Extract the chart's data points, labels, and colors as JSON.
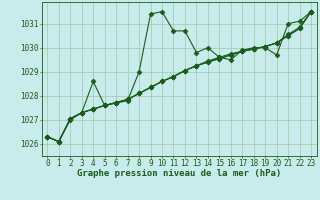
{
  "title": "Graphe pression niveau de la mer (hPa)",
  "bg_color": "#c8ecec",
  "line_color": "#1a5c1a",
  "grid_color": "#a0c8a8",
  "xlim": [
    -0.5,
    23.5
  ],
  "ylim": [
    1025.5,
    1031.9
  ],
  "yticks": [
    1026,
    1027,
    1028,
    1029,
    1030,
    1031
  ],
  "xticks": [
    0,
    1,
    2,
    3,
    4,
    5,
    6,
    7,
    8,
    9,
    10,
    11,
    12,
    13,
    14,
    15,
    16,
    17,
    18,
    19,
    20,
    21,
    22,
    23
  ],
  "series": [
    [
      1026.3,
      1026.1,
      1027.0,
      1027.3,
      1028.6,
      1027.6,
      1027.7,
      1027.8,
      1029.0,
      1031.4,
      1031.5,
      1030.7,
      1030.7,
      1029.8,
      1030.0,
      1029.6,
      1029.5,
      1029.9,
      1030.0,
      1030.0,
      1029.7,
      1031.0,
      1031.1,
      1031.5
    ],
    [
      1026.3,
      1026.1,
      1027.05,
      1027.3,
      1027.45,
      1027.6,
      1027.72,
      1027.85,
      1028.1,
      1028.35,
      1028.6,
      1028.8,
      1029.05,
      1029.25,
      1029.45,
      1029.6,
      1029.75,
      1029.85,
      1029.95,
      1030.05,
      1030.2,
      1030.55,
      1030.85,
      1031.5
    ],
    [
      1026.3,
      1026.1,
      1027.05,
      1027.3,
      1027.45,
      1027.6,
      1027.72,
      1027.85,
      1028.1,
      1028.35,
      1028.6,
      1028.8,
      1029.05,
      1029.25,
      1029.4,
      1029.55,
      1029.7,
      1029.85,
      1029.95,
      1030.05,
      1030.2,
      1030.5,
      1030.8,
      1031.5
    ],
    [
      1026.3,
      1026.1,
      1027.05,
      1027.3,
      1027.45,
      1027.6,
      1027.72,
      1027.85,
      1028.1,
      1028.35,
      1028.6,
      1028.8,
      1029.05,
      1029.25,
      1029.4,
      1029.55,
      1029.7,
      1029.85,
      1029.95,
      1030.05,
      1030.2,
      1030.5,
      1030.8,
      1031.5
    ]
  ],
  "tick_fontsize": 5.5,
  "title_fontsize": 6.5,
  "linewidth": 0.8,
  "marker": "D",
  "marker_size": 2.5
}
